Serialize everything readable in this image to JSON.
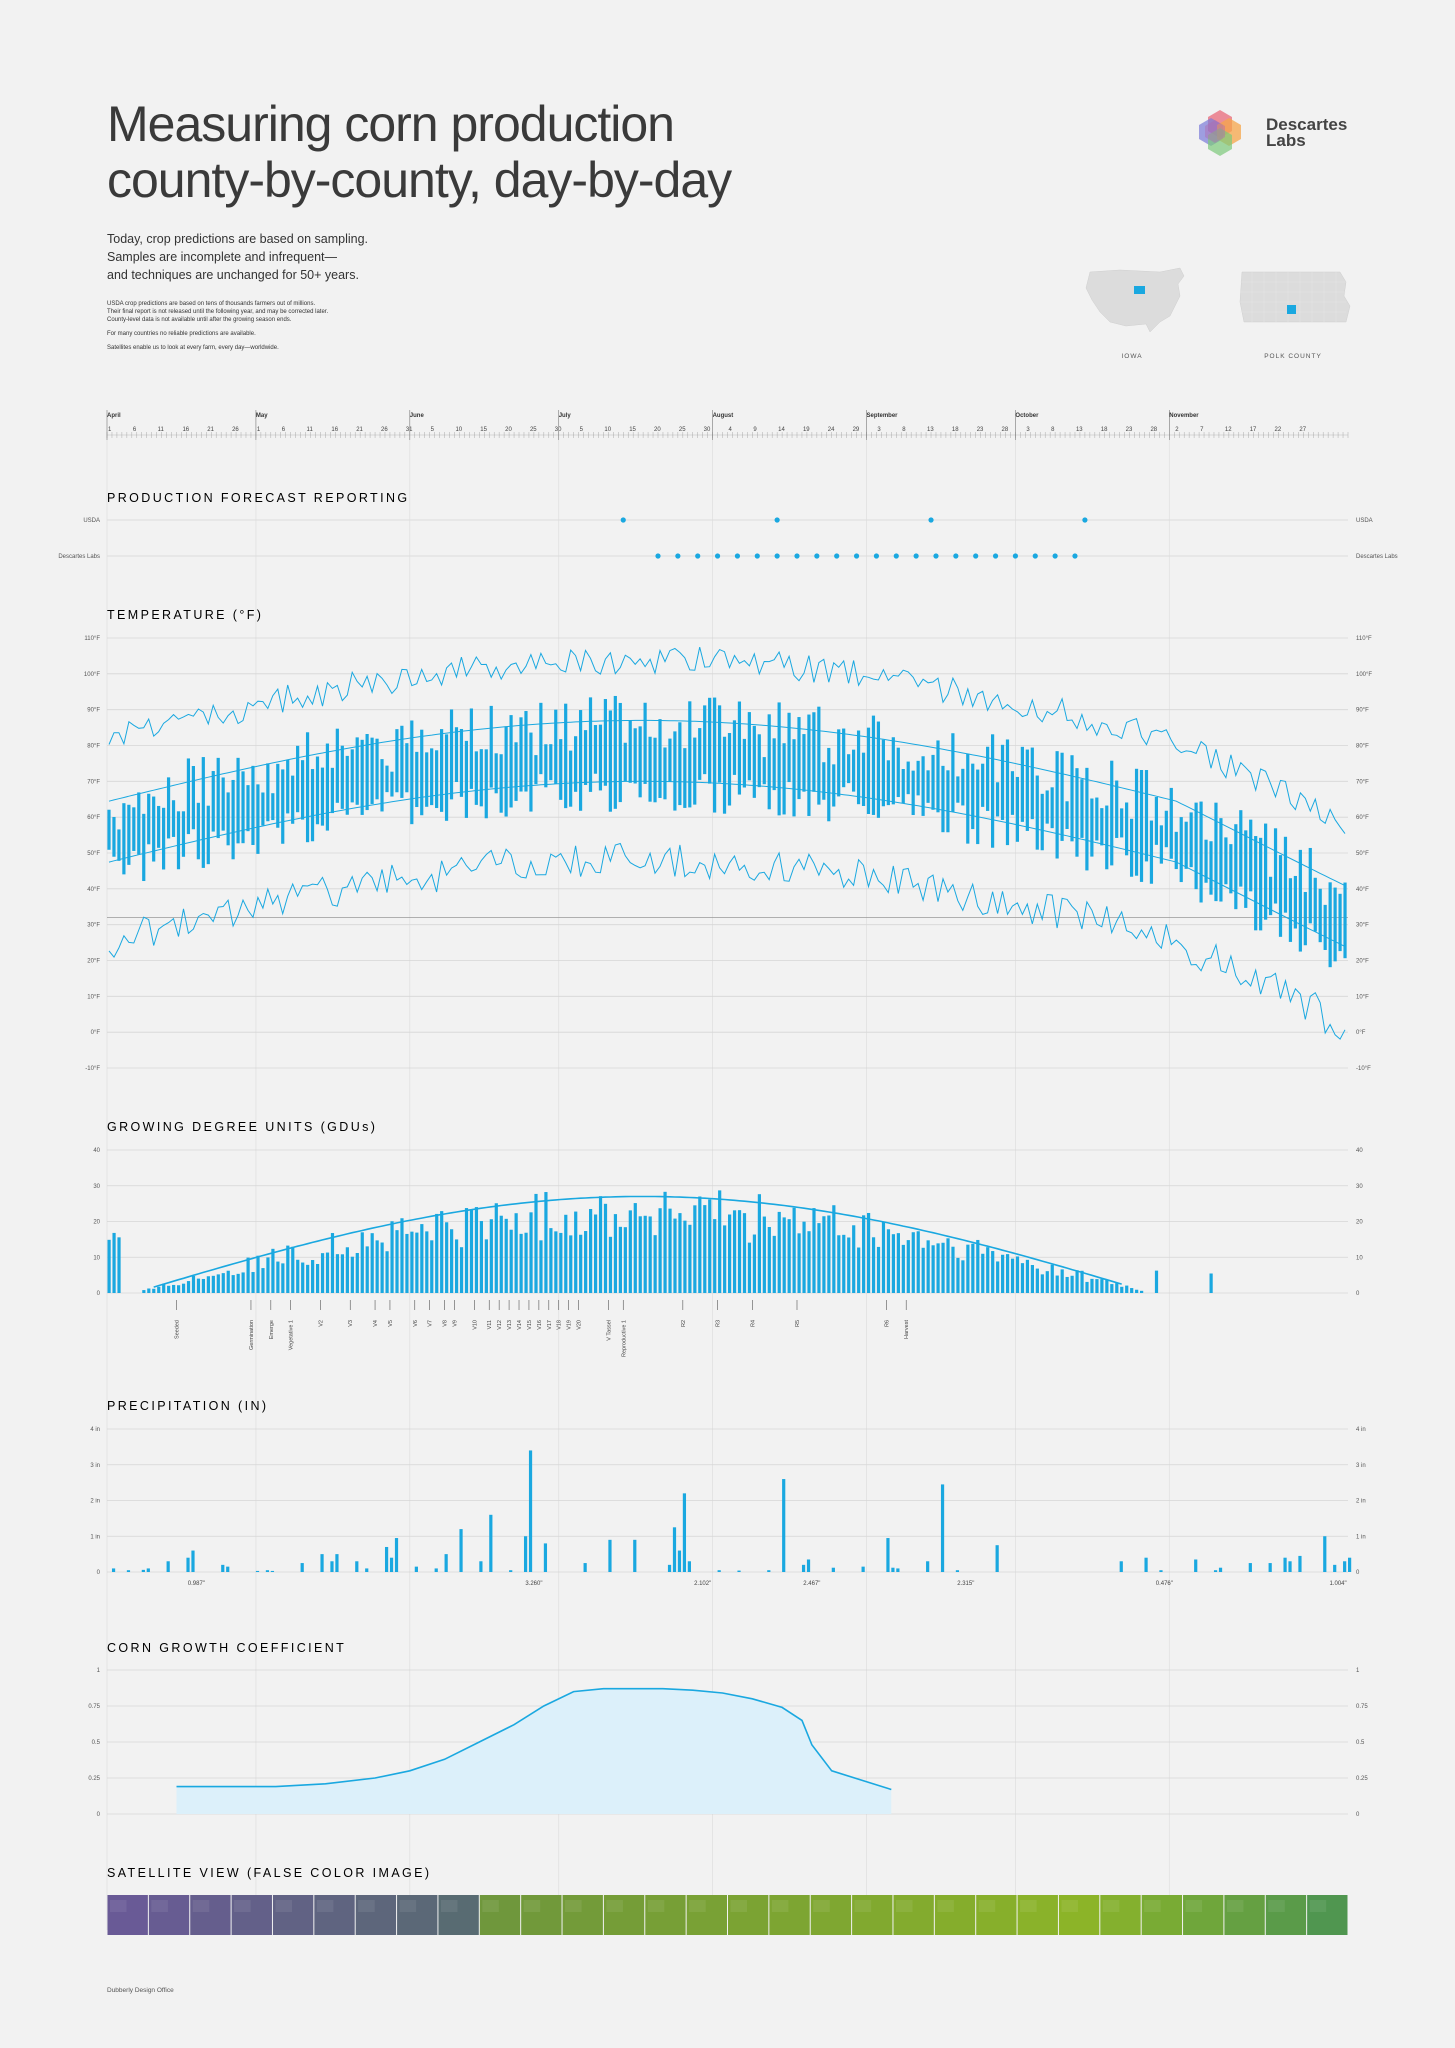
{
  "header": {
    "title_lines": [
      "Measuring corn production",
      "county-by-county, day-by-day"
    ],
    "intro_lines": [
      "Today, crop predictions are based on sampling.",
      "Samples are incomplete and infrequent—",
      "and techniques are unchanged for 50+ years."
    ],
    "fine_print_lines": [
      "USDA crop predictions are based on tens of thousands farmers out of millions.",
      "Their final report is not released until the following year, and may be corrected later.",
      "County-level data is not available until after the growing season ends."
    ],
    "fine_print_2": "For many countries no reliable predictions are available.",
    "fine_print_3": "Satellites enable us to look at every farm, every day—worldwide.",
    "logo_lines": [
      "Descartes",
      "Labs"
    ],
    "map_labels": [
      "IOWA",
      "POLK COUNTY"
    ],
    "accent_color": "#1aa8e0"
  },
  "timeline": {
    "months": [
      "April",
      "May",
      "June",
      "July",
      "August",
      "September",
      "October",
      "November"
    ],
    "day_ticks": [
      [
        "1",
        "6",
        "11",
        "16",
        "21",
        "26"
      ],
      [
        "1",
        "6",
        "11",
        "16",
        "21",
        "26",
        "31"
      ],
      [
        "5",
        "10",
        "15",
        "20",
        "25",
        "30"
      ],
      [
        "5",
        "10",
        "15",
        "20",
        "25",
        "30"
      ],
      [
        "4",
        "9",
        "14",
        "19",
        "24",
        "29"
      ],
      [
        "3",
        "8",
        "13",
        "18",
        "23",
        "28"
      ],
      [
        "3",
        "8",
        "13",
        "18",
        "23",
        "28"
      ],
      [
        "2",
        "7",
        "12",
        "17",
        "22",
        "27"
      ]
    ]
  },
  "sections": {
    "forecast": "PRODUCTION FORECAST REPORTING",
    "temperature": "TEMPERATURE (°F)",
    "gdu": "GROWING DEGREE UNITS (GDUs)",
    "precip": "PRECIPITATION (IN)",
    "growth": "CORN GROWTH COEFFICIENT",
    "satellite": "SATELLITE VIEW (FALSE COLOR IMAGE)"
  },
  "footer": "Dubberly Design Office",
  "chart_data": [
    {
      "type": "scatter",
      "name": "forecast",
      "rows": [
        "USDA",
        "Descartes Labs"
      ],
      "usda_day": [
        104,
        135,
        166,
        197
      ],
      "dl_day": [
        111,
        115,
        119,
        123,
        127,
        131,
        135,
        139,
        143,
        147,
        151,
        155,
        159,
        163,
        167,
        171,
        175,
        179,
        183,
        187,
        191,
        195
      ]
    },
    {
      "type": "bar",
      "name": "temperature",
      "ylim": [
        -10,
        110
      ],
      "ytick_labels": [
        "110°F",
        "100°F",
        "90°F",
        "80°F",
        "70°F",
        "60°F",
        "50°F",
        "40°F",
        "30°F",
        "20°F",
        "10°F",
        "0°F",
        "-10°F"
      ],
      "reference_line": 32
    },
    {
      "type": "bar",
      "name": "gdu",
      "ylim": [
        0,
        40
      ],
      "ytick_labels": [
        "40",
        "30",
        "20",
        "10",
        "0"
      ],
      "stages": [
        "Seeded",
        "Germination",
        "Emerge",
        "Vegetative 1",
        "V2",
        "V3",
        "V4",
        "V5",
        "V6",
        "V7",
        "V8",
        "V9",
        "V10",
        "V11",
        "V12",
        "V13",
        "V14",
        "V15",
        "V16",
        "V17",
        "V18",
        "V19",
        "V20",
        "V Tassel",
        "Reproductive 1",
        "R2",
        "R3",
        "R4",
        "R5",
        "R6",
        "Harvest"
      ],
      "stage_day": [
        14,
        29,
        33,
        37,
        43,
        49,
        54,
        57,
        62,
        65,
        68,
        70,
        74,
        77,
        79,
        81,
        83,
        85,
        87,
        89,
        91,
        93,
        95,
        101,
        104,
        116,
        123,
        130,
        139,
        157,
        161
      ]
    },
    {
      "type": "bar",
      "name": "precipitation",
      "ylim": [
        0,
        4
      ],
      "ytick_labels": [
        "4 in",
        "3 in",
        "2 in",
        "1 in",
        "0"
      ],
      "bars": [
        [
          1,
          0.1
        ],
        [
          4,
          0.05
        ],
        [
          7,
          0.06
        ],
        [
          8,
          0.1
        ],
        [
          12,
          0.3
        ],
        [
          16,
          0.4
        ],
        [
          17,
          0.6
        ],
        [
          23,
          0.2
        ],
        [
          24,
          0.15
        ],
        [
          30,
          0.03
        ],
        [
          32,
          0.05
        ],
        [
          33,
          0.03
        ],
        [
          39,
          0.25
        ],
        [
          43,
          0.5
        ],
        [
          45,
          0.3
        ],
        [
          46,
          0.5
        ],
        [
          50,
          0.3
        ],
        [
          52,
          0.1
        ],
        [
          56,
          0.7
        ],
        [
          57,
          0.4
        ],
        [
          58,
          0.95
        ],
        [
          62,
          0.15
        ],
        [
          66,
          0.1
        ],
        [
          68,
          0.5
        ],
        [
          71,
          1.2
        ],
        [
          75,
          0.3
        ],
        [
          77,
          1.6
        ],
        [
          81,
          0.05
        ],
        [
          84,
          1.0
        ],
        [
          85,
          3.4
        ],
        [
          88,
          0.8
        ],
        [
          96,
          0.25
        ],
        [
          101,
          0.9
        ],
        [
          106,
          0.9
        ],
        [
          113,
          0.2
        ],
        [
          114,
          1.25
        ],
        [
          115,
          0.6
        ],
        [
          116,
          2.2
        ],
        [
          117,
          0.3
        ],
        [
          123,
          0.05
        ],
        [
          127,
          0.04
        ],
        [
          133,
          0.05
        ],
        [
          136,
          2.6
        ],
        [
          140,
          0.2
        ],
        [
          141,
          0.35
        ],
        [
          146,
          0.12
        ],
        [
          152,
          0.15
        ],
        [
          157,
          0.95
        ],
        [
          158,
          0.12
        ],
        [
          159,
          0.1
        ],
        [
          165,
          0.3
        ],
        [
          168,
          2.45
        ],
        [
          171,
          0.05
        ],
        [
          179,
          0.75
        ],
        [
          204,
          0.3
        ],
        [
          209,
          0.4
        ],
        [
          212,
          0.05
        ],
        [
          219,
          0.35
        ],
        [
          223,
          0.05
        ],
        [
          224,
          0.12
        ],
        [
          230,
          0.25
        ],
        [
          234,
          0.25
        ],
        [
          237,
          0.4
        ],
        [
          238,
          0.3
        ],
        [
          240,
          0.45
        ],
        [
          245,
          1.0
        ],
        [
          247,
          0.2
        ],
        [
          249,
          0.3
        ],
        [
          250,
          0.4
        ]
      ],
      "totals": [
        [
          "0.987\"",
          18
        ],
        [
          "3.260\"",
          86
        ],
        [
          "2.102\"",
          120
        ],
        [
          "2.467\"",
          142
        ],
        [
          "2.315\"",
          173
        ],
        [
          "0.476\"",
          213
        ],
        [
          "1.004\"",
          248
        ]
      ]
    },
    {
      "type": "area",
      "name": "growth",
      "ylim": [
        0,
        1
      ],
      "ytick_labels": [
        "1",
        "0.75",
        "0.5",
        "0.25",
        "0"
      ],
      "x": [
        14,
        25,
        34,
        44,
        54,
        61,
        68,
        75,
        82,
        88,
        94,
        100,
        106,
        112,
        118,
        124,
        130,
        136,
        140,
        142,
        146,
        158
      ],
      "y": [
        0.19,
        0.19,
        0.19,
        0.21,
        0.25,
        0.3,
        0.38,
        0.5,
        0.62,
        0.75,
        0.85,
        0.87,
        0.87,
        0.87,
        0.86,
        0.84,
        0.8,
        0.74,
        0.65,
        0.48,
        0.3,
        0.17
      ]
    }
  ]
}
